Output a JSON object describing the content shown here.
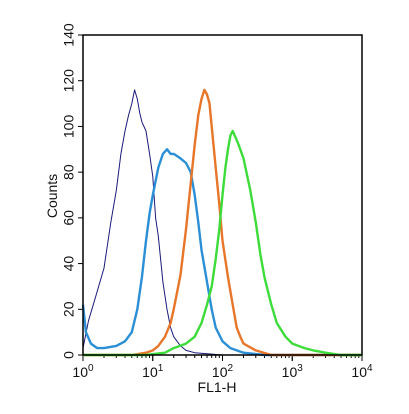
{
  "chart_data": {
    "type": "line",
    "title": "",
    "xlabel": "FL1-H",
    "ylabel": "Counts",
    "x_scale": "log",
    "xlim": [
      1,
      10000
    ],
    "ylim": [
      0,
      140
    ],
    "grid": false,
    "x_ticks": [
      {
        "base": "10",
        "exp": "0",
        "value": 1
      },
      {
        "base": "10",
        "exp": "1",
        "value": 10
      },
      {
        "base": "10",
        "exp": "2",
        "value": 100
      },
      {
        "base": "10",
        "exp": "3",
        "value": 1000
      },
      {
        "base": "10",
        "exp": "4",
        "value": 10000
      }
    ],
    "y_ticks": [
      "0",
      "20",
      "40",
      "60",
      "80",
      "100",
      "120",
      "140"
    ],
    "series": [
      {
        "color": "#1a1a7a",
        "width": 1,
        "points": [
          [
            1,
            3
          ],
          [
            1.2,
            15
          ],
          [
            1.5,
            25
          ],
          [
            2,
            38
          ],
          [
            2.5,
            58
          ],
          [
            3,
            72
          ],
          [
            3.5,
            88
          ],
          [
            4,
            98
          ],
          [
            4.5,
            105
          ],
          [
            5,
            110
          ],
          [
            5.5,
            116
          ],
          [
            6,
            112
          ],
          [
            6.5,
            106
          ],
          [
            7,
            102
          ],
          [
            8,
            98
          ],
          [
            9,
            88
          ],
          [
            10,
            78
          ],
          [
            11,
            60
          ],
          [
            12,
            52
          ],
          [
            14,
            32
          ],
          [
            16,
            20
          ],
          [
            18,
            12
          ],
          [
            20,
            8
          ],
          [
            25,
            4
          ],
          [
            30,
            2
          ],
          [
            40,
            1
          ],
          [
            100,
            0
          ],
          [
            10000,
            0
          ]
        ]
      },
      {
        "color": "#2b8fd6",
        "width": 2.4,
        "points": [
          [
            1,
            22
          ],
          [
            1.1,
            10
          ],
          [
            1.3,
            5
          ],
          [
            1.6,
            3
          ],
          [
            2,
            3
          ],
          [
            3,
            4
          ],
          [
            4,
            6
          ],
          [
            5,
            10
          ],
          [
            6,
            20
          ],
          [
            7,
            34
          ],
          [
            8,
            50
          ],
          [
            9,
            62
          ],
          [
            10,
            70
          ],
          [
            12,
            82
          ],
          [
            14,
            88
          ],
          [
            16,
            90
          ],
          [
            18,
            88
          ],
          [
            20,
            88
          ],
          [
            25,
            86
          ],
          [
            30,
            84
          ],
          [
            35,
            80
          ],
          [
            40,
            70
          ],
          [
            45,
            58
          ],
          [
            50,
            46
          ],
          [
            60,
            32
          ],
          [
            70,
            20
          ],
          [
            80,
            12
          ],
          [
            100,
            6
          ],
          [
            130,
            3
          ],
          [
            200,
            1
          ],
          [
            400,
            0
          ],
          [
            10000,
            0
          ]
        ]
      },
      {
        "color": "#e8762a",
        "width": 2.4,
        "points": [
          [
            1,
            0
          ],
          [
            5,
            0
          ],
          [
            8,
            1
          ],
          [
            10,
            2
          ],
          [
            12,
            4
          ],
          [
            15,
            8
          ],
          [
            18,
            14
          ],
          [
            20,
            20
          ],
          [
            25,
            35
          ],
          [
            30,
            55
          ],
          [
            35,
            75
          ],
          [
            40,
            92
          ],
          [
            45,
            105
          ],
          [
            50,
            112
          ],
          [
            55,
            116
          ],
          [
            60,
            114
          ],
          [
            65,
            110
          ],
          [
            70,
            100
          ],
          [
            80,
            82
          ],
          [
            90,
            66
          ],
          [
            100,
            50
          ],
          [
            120,
            34
          ],
          [
            140,
            22
          ],
          [
            160,
            12
          ],
          [
            180,
            8
          ],
          [
            200,
            5
          ],
          [
            300,
            2
          ],
          [
            500,
            0
          ],
          [
            10000,
            0
          ]
        ]
      },
      {
        "color": "#3ddc3a",
        "width": 2.4,
        "points": [
          [
            1,
            0
          ],
          [
            8,
            0
          ],
          [
            15,
            1
          ],
          [
            20,
            3
          ],
          [
            30,
            5
          ],
          [
            40,
            8
          ],
          [
            50,
            14
          ],
          [
            60,
            22
          ],
          [
            70,
            30
          ],
          [
            80,
            42
          ],
          [
            90,
            55
          ],
          [
            100,
            70
          ],
          [
            110,
            82
          ],
          [
            120,
            90
          ],
          [
            130,
            96
          ],
          [
            140,
            98
          ],
          [
            150,
            96
          ],
          [
            170,
            92
          ],
          [
            200,
            86
          ],
          [
            250,
            72
          ],
          [
            300,
            58
          ],
          [
            350,
            44
          ],
          [
            400,
            34
          ],
          [
            500,
            22
          ],
          [
            600,
            14
          ],
          [
            800,
            8
          ],
          [
            1000,
            5
          ],
          [
            1500,
            3
          ],
          [
            2000,
            2
          ],
          [
            3000,
            1
          ],
          [
            5000,
            0
          ],
          [
            10000,
            0
          ]
        ]
      }
    ]
  }
}
